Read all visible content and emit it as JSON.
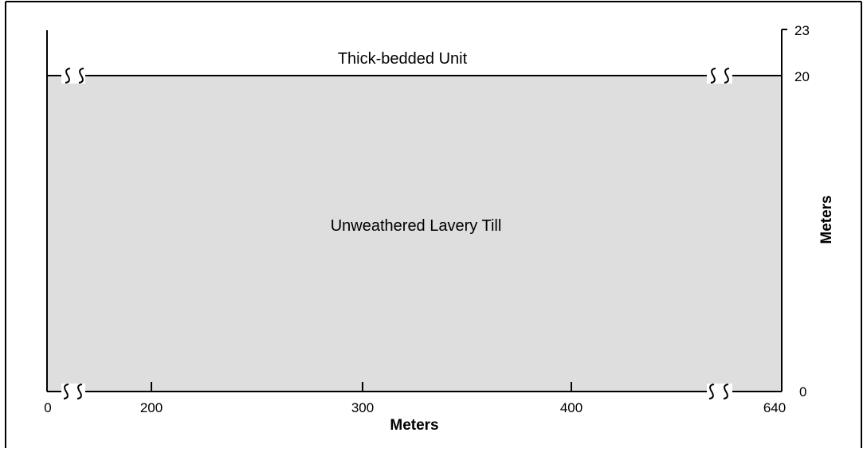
{
  "colors": {
    "fill": "#dedede",
    "line": "#000000",
    "background": "#ffffff"
  },
  "units": {
    "upper": "Thick-bedded Unit",
    "lower": "Unweathered Lavery Till"
  },
  "x_axis": {
    "title": "Meters",
    "ticks": [
      {
        "value": "0"
      },
      {
        "value": "200"
      },
      {
        "value": "300"
      },
      {
        "value": "400"
      },
      {
        "value": "640"
      }
    ],
    "breaks": "axis breaks after 0 and before 640"
  },
  "y_axis": {
    "title": "Meters",
    "ticks": [
      {
        "value": "0"
      },
      {
        "value": "20"
      },
      {
        "value": "23"
      }
    ]
  }
}
